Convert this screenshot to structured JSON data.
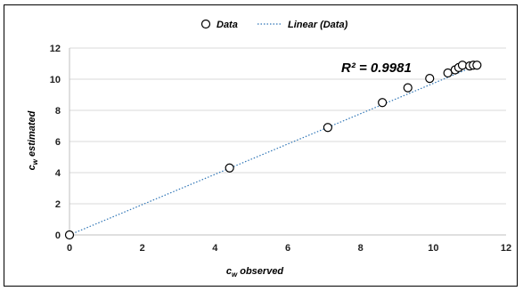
{
  "chart_data": {
    "type": "scatter",
    "title": "",
    "xlabel": "c",
    "xlabel_sub": "w",
    "xlabel_rest": " observed",
    "ylabel": "c",
    "ylabel_sub": "w",
    "ylabel_rest": " estimated",
    "xlim": [
      0,
      12
    ],
    "ylim": [
      0,
      12
    ],
    "xticks": [
      "0",
      "2",
      "4",
      "6",
      "8",
      "10",
      "12"
    ],
    "yticks": [
      "0",
      "2",
      "4",
      "6",
      "8",
      "10",
      "12"
    ],
    "grid": "horizontal",
    "legend_position": "top",
    "series": [
      {
        "name": "Data",
        "marker": "open-circle",
        "x": [
          0,
          4.4,
          7.1,
          8.6,
          9.3,
          9.9,
          10.4,
          10.6,
          10.7,
          10.8,
          11.0,
          11.1,
          11.2
        ],
        "y": [
          0,
          4.3,
          6.9,
          8.5,
          9.45,
          10.05,
          10.4,
          10.6,
          10.75,
          10.9,
          10.85,
          10.9,
          10.9
        ]
      }
    ],
    "trendline": {
      "name": "Linear (Data)",
      "style": "dotted",
      "color": "#2e75b6",
      "x": [
        0,
        11.2
      ],
      "y": [
        0,
        10.9
      ]
    },
    "annotation": "R² = 0.9981",
    "colors": {
      "marker_stroke": "#000000",
      "marker_fill": "#ffffff",
      "trend": "#2e75b6",
      "grid": "#d9d9d9"
    }
  }
}
